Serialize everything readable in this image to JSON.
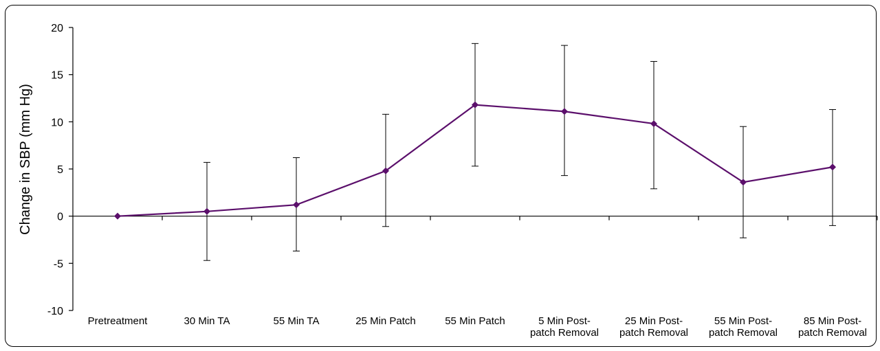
{
  "chart_data": {
    "type": "line",
    "title": "",
    "xlabel": "",
    "ylabel": "Change in SBP (mm Hg)",
    "ylim": [
      -10,
      20
    ],
    "yticks": [
      20,
      15,
      10,
      5,
      0,
      -5,
      -10
    ],
    "categories": [
      [
        "Pretreatment"
      ],
      [
        "30 Min TA"
      ],
      [
        "55 Min TA"
      ],
      [
        "25 Min Patch"
      ],
      [
        "55 Min Patch"
      ],
      [
        "5 Min Post-",
        "patch Removal"
      ],
      [
        "25 Min Post-",
        "patch Removal"
      ],
      [
        "55 Min Post-",
        "patch Removal"
      ],
      [
        "85 Min Post-",
        "patch Removal"
      ]
    ],
    "series": [
      {
        "color": "#5b0f6b",
        "values": [
          0,
          0.5,
          1.2,
          4.8,
          11.8,
          11.1,
          9.8,
          3.6,
          5.2
        ],
        "error_low": [
          0,
          -4.7,
          -3.7,
          -1.1,
          5.3,
          4.3,
          2.9,
          -2.3,
          -1.0
        ],
        "error_high": [
          0,
          5.7,
          6.2,
          10.8,
          18.3,
          18.1,
          16.4,
          9.5,
          11.3
        ]
      }
    ],
    "grid": false,
    "legend": "none"
  }
}
